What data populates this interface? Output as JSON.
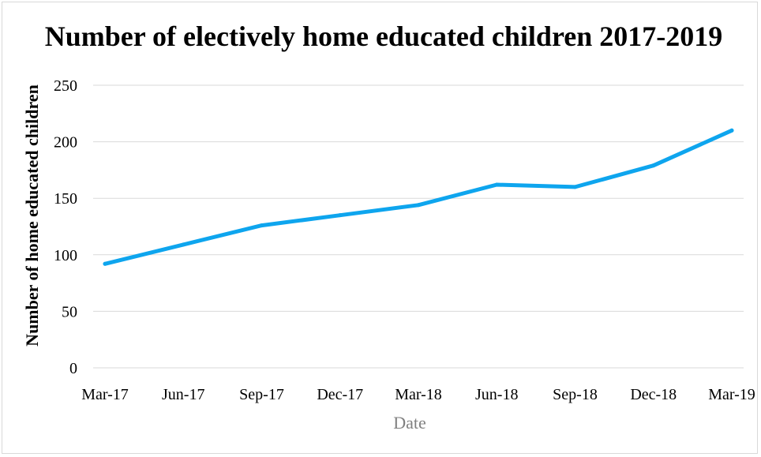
{
  "chart_data": {
    "type": "line",
    "title": "Number of electively home educated children 2017-2019",
    "xlabel": "Date",
    "ylabel": "Number of home educated children",
    "ylim": [
      0,
      250
    ],
    "yticks": [
      0,
      50,
      100,
      150,
      200,
      250
    ],
    "grid": true,
    "legend": "none",
    "categories": [
      "Mar-17",
      "Jun-17",
      "Sep-17",
      "Dec-17",
      "Mar-18",
      "Jun-18",
      "Sep-18",
      "Dec-18",
      "Mar-19"
    ],
    "x": [
      "Mar-17",
      "Jun-17",
      "Sep-17",
      "Dec-17",
      "Mar-18",
      "Jun-18",
      "Sep-18",
      "Dec-18",
      "Mar-19"
    ],
    "values": [
      92,
      109,
      126,
      135,
      144,
      162,
      160,
      179,
      210
    ],
    "series_color": "#0ea5ee",
    "grid_color": "#d9d9d9",
    "xlabel_color": "#808080"
  }
}
